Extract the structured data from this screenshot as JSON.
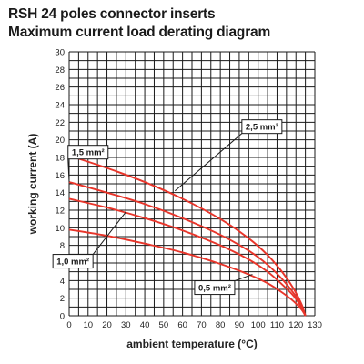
{
  "header": {
    "title": "RSH 24 poles connector inserts",
    "subtitle": "Maximum current load derating diagram"
  },
  "colors": {
    "curve": "#e8352a",
    "grid": "#1a1a1a",
    "text": "#1a1a1a"
  },
  "chart_data": {
    "type": "line",
    "title": "RSH 24 poles connector inserts",
    "subtitle": "Maximum current load derating diagram",
    "xlabel": "ambient temperature (°C)",
    "ylabel": "working current (A)",
    "xlim": [
      0,
      130
    ],
    "ylim": [
      0,
      30
    ],
    "x_ticks": [
      0,
      10,
      20,
      30,
      40,
      50,
      60,
      70,
      80,
      90,
      100,
      110,
      120,
      130
    ],
    "y_ticks": [
      0,
      2,
      4,
      6,
      8,
      10,
      12,
      14,
      16,
      18,
      20,
      22,
      24,
      26,
      28,
      30
    ],
    "grid": true,
    "series": [
      {
        "name": "2,5 mm²",
        "x": [
          0,
          20,
          40,
          60,
          80,
          95,
          105,
          113,
          119,
          123,
          125
        ],
        "y": [
          18.2,
          16.8,
          15.2,
          13.3,
          11.0,
          8.8,
          6.9,
          4.9,
          3.0,
          1.3,
          0
        ]
      },
      {
        "name": "1,5 mm²",
        "x": [
          0,
          20,
          40,
          60,
          80,
          95,
          105,
          113,
          119,
          123,
          125
        ],
        "y": [
          15.2,
          14.0,
          12.7,
          11.1,
          9.2,
          7.4,
          5.8,
          4.1,
          2.5,
          1.1,
          0
        ]
      },
      {
        "name": "1,0 mm²",
        "x": [
          0,
          20,
          40,
          60,
          80,
          95,
          105,
          113,
          119,
          123,
          125
        ],
        "y": [
          13.3,
          12.3,
          11.1,
          9.7,
          8.0,
          6.4,
          5.0,
          3.5,
          2.2,
          0.9,
          0
        ]
      },
      {
        "name": "0,5 mm²",
        "x": [
          0,
          20,
          40,
          60,
          80,
          95,
          105,
          113,
          119,
          123,
          125
        ],
        "y": [
          9.8,
          9.1,
          8.2,
          7.2,
          5.9,
          4.7,
          3.7,
          2.6,
          1.6,
          0.7,
          0
        ]
      }
    ],
    "annotations": [
      {
        "text": "2,5 mm²",
        "x": 102,
        "y": 21.5,
        "series": 0,
        "arrow_to": [
          56,
          14.2
        ]
      },
      {
        "text": "1,5 mm²",
        "x": 10,
        "y": 18.6,
        "series": 1,
        "arrow_to": [
          0,
          15.2
        ]
      },
      {
        "text": "1,0 mm²",
        "x": 2,
        "y": 6.2,
        "series": 2,
        "arrow_to": [
          30,
          11.8
        ]
      },
      {
        "text": "0,5 mm²",
        "x": 77,
        "y": 3.2,
        "series": 3,
        "arrow_to": [
          97,
          4.7
        ]
      }
    ]
  }
}
